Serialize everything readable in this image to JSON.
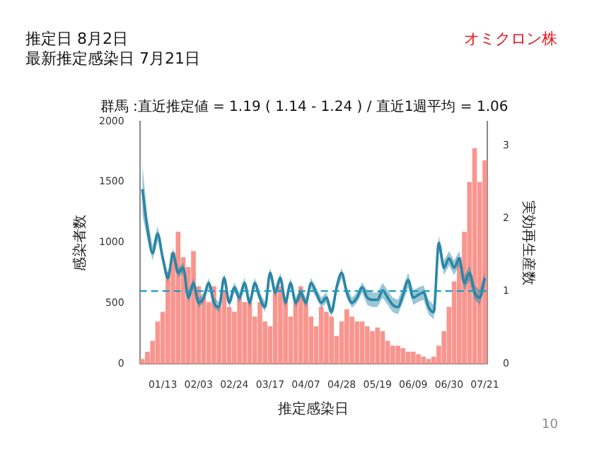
{
  "chart_data": {
    "type": "bar",
    "title": "群馬 :直近推定値 = 1.19 ( 1.14 - 1.24 ) / 直近1週平均 = 1.06",
    "xlabel": "推定感染日",
    "ylabel": "感染者数",
    "y2label": "実効再生産数",
    "annotations": [
      "推定日  8月2日",
      "最新推定感染日  7月21日",
      "オミクロン株",
      "10"
    ],
    "categories": [
      null,
      null,
      null,
      null,
      "01/13",
      null,
      null,
      null,
      null,
      null,
      null,
      "02/03",
      null,
      null,
      null,
      null,
      null,
      null,
      "02/24",
      null,
      null,
      null,
      null,
      null,
      null,
      "03/17",
      null,
      null,
      null,
      null,
      null,
      null,
      "04/07",
      null,
      null,
      null,
      null,
      null,
      null,
      "04/28",
      null,
      null,
      null,
      null,
      null,
      null,
      "05/19",
      null,
      null,
      null,
      null,
      null,
      null,
      "06/09",
      null,
      null,
      null,
      null,
      null,
      null,
      "06/30",
      null,
      null,
      null,
      null,
      null,
      null,
      "07/21"
    ],
    "series": [
      {
        "color": "#f8958e",
        "values": [
          40,
          100,
          190,
          350,
          430,
          760,
          920,
          1090,
          880,
          800,
          930,
          640,
          550,
          510,
          640,
          470,
          600,
          470,
          430,
          550,
          510,
          510,
          390,
          510,
          350,
          310,
          600,
          640,
          550,
          390,
          510,
          640,
          510,
          390,
          310,
          470,
          430,
          390,
          230,
          350,
          450,
          390,
          350,
          350,
          310,
          270,
          300,
          270,
          190,
          150,
          150,
          130,
          100,
          100,
          80,
          60,
          40,
          60,
          150,
          270,
          470,
          680,
          880,
          1090,
          1500,
          1780,
          1500,
          1680
        ]
      },
      {
        "type": "line",
        "axis": "y2",
        "color": "#2a86a6",
        "values": [
          2.4,
          1.86,
          1.52,
          1.79,
          1.45,
          1.18,
          1.52,
          1.25,
          1.32,
          0.91,
          1.11,
          0.84,
          0.91,
          1.11,
          0.84,
          0.78,
          1.18,
          0.84,
          1.05,
          0.91,
          1.11,
          0.84,
          1.11,
          0.91,
          0.78,
          1.25,
          0.98,
          1.18,
          0.84,
          1.11,
          0.84,
          0.98,
          0.84,
          1.11,
          0.98,
          0.84,
          0.91,
          0.71,
          1.05,
          1.25,
          0.98,
          0.84,
          0.91,
          1.05,
          0.91,
          0.88,
          0.88,
          1.01,
          0.91,
          0.81,
          0.78,
          0.95,
          1.15,
          0.91,
          0.95,
          0.98,
          0.78,
          0.71,
          1.66,
          1.32,
          1.45,
          1.32,
          1.45,
          1.11,
          1.25,
          0.98,
          0.91,
          1.18
        ],
        "lower": [
          2.05,
          1.71,
          1.42,
          1.69,
          1.38,
          1.11,
          1.45,
          1.18,
          1.25,
          0.84,
          1.04,
          0.77,
          0.84,
          1.04,
          0.77,
          0.71,
          1.11,
          0.77,
          0.98,
          0.84,
          1.04,
          0.77,
          1.04,
          0.84,
          0.71,
          1.18,
          0.91,
          1.11,
          0.77,
          1.04,
          0.77,
          0.91,
          0.77,
          1.04,
          0.91,
          0.77,
          0.84,
          0.64,
          0.98,
          1.18,
          0.91,
          0.77,
          0.84,
          0.98,
          0.81,
          0.78,
          0.78,
          0.91,
          0.81,
          0.71,
          0.68,
          0.85,
          1.05,
          0.81,
          0.85,
          0.88,
          0.68,
          0.61,
          1.56,
          1.22,
          1.35,
          1.22,
          1.35,
          1.01,
          1.15,
          0.88,
          0.81,
          1.08
        ],
        "upper": [
          2.75,
          2.01,
          1.62,
          1.89,
          1.52,
          1.25,
          1.59,
          1.32,
          1.39,
          0.98,
          1.18,
          0.91,
          0.98,
          1.18,
          0.91,
          0.85,
          1.25,
          0.91,
          1.12,
          0.98,
          1.18,
          0.91,
          1.18,
          0.98,
          0.85,
          1.32,
          1.05,
          1.25,
          0.91,
          1.18,
          0.91,
          1.05,
          0.91,
          1.18,
          1.05,
          0.91,
          0.98,
          0.78,
          1.12,
          1.32,
          1.05,
          0.91,
          0.98,
          1.12,
          1.01,
          0.98,
          0.98,
          1.11,
          1.01,
          0.91,
          0.88,
          1.05,
          1.25,
          1.01,
          1.05,
          1.08,
          0.88,
          0.81,
          1.76,
          1.42,
          1.55,
          1.42,
          1.55,
          1.21,
          1.35,
          1.08,
          1.01,
          1.28
        ]
      }
    ],
    "ylim": [
      0,
      2000
    ],
    "yticks": [
      0,
      500,
      1000,
      1500,
      2000
    ],
    "y2lim": [
      0,
      3.33
    ],
    "y2ticks": [
      0,
      1,
      2,
      3
    ],
    "ref_lines": [
      {
        "axis": "y2",
        "value": 1,
        "color": "#1f9cbf",
        "line_style": "dashed"
      }
    ],
    "grid": false,
    "legend": false
  }
}
